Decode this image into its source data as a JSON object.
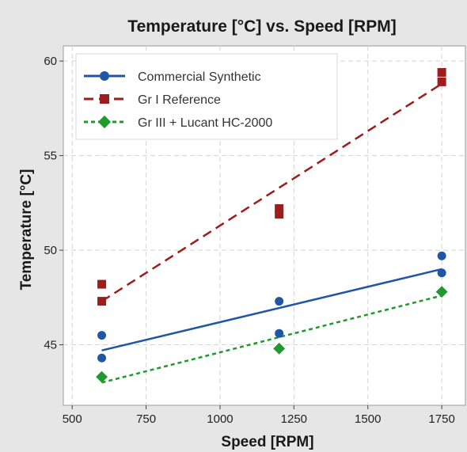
{
  "chart_data": {
    "type": "scatter",
    "title": "Temperature [°C] vs. Speed [RPM]",
    "xlabel": "Speed [RPM]",
    "ylabel": "Temperature [°C]",
    "xlim": [
      470,
      1830
    ],
    "ylim": [
      41.8,
      60.8
    ],
    "xticks": [
      500,
      750,
      1000,
      1250,
      1500,
      1750
    ],
    "yticks": [
      45,
      50,
      55,
      60
    ],
    "grid": true,
    "legend_position": "top-left",
    "series": [
      {
        "name": "Commercial Synthetic",
        "color": "#1f56a5",
        "marker": "circle",
        "line_style": "solid",
        "points": [
          [
            600,
            45.5
          ],
          [
            600,
            44.3
          ],
          [
            1200,
            47.3
          ],
          [
            1200,
            45.6
          ],
          [
            1750,
            49.7
          ],
          [
            1750,
            48.8
          ]
        ],
        "fit": [
          [
            600,
            44.7
          ],
          [
            1750,
            49.0
          ]
        ]
      },
      {
        "name": "Gr I Reference",
        "color": "#9e1c1c",
        "marker": "square",
        "line_style": "dashed",
        "points": [
          [
            600,
            48.2
          ],
          [
            600,
            47.3
          ],
          [
            1200,
            52.2
          ],
          [
            1200,
            51.9
          ],
          [
            1750,
            59.4
          ],
          [
            1750,
            58.9
          ]
        ],
        "fit": [
          [
            600,
            47.3
          ],
          [
            1750,
            58.8
          ]
        ]
      },
      {
        "name": "Gr III + Lucant HC-2000",
        "color": "#1f9a2e",
        "marker": "diamond",
        "line_style": "dotted",
        "points": [
          [
            600,
            43.3
          ],
          [
            1200,
            44.8
          ],
          [
            1750,
            47.8
          ]
        ],
        "fit": [
          [
            600,
            43.0
          ],
          [
            1750,
            47.6
          ]
        ]
      }
    ]
  }
}
